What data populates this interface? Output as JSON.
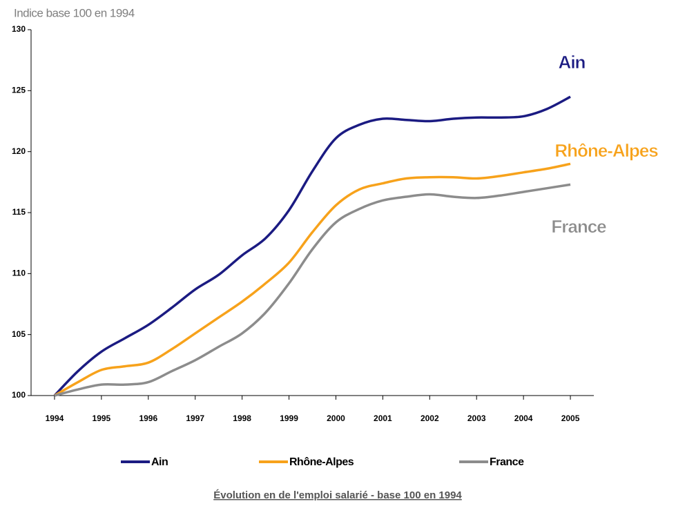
{
  "chart_data": {
    "type": "line",
    "ylabel": "Indice base 100 en 1994",
    "title": "Évolution en de l'emploi salarié - base 100 en 1994",
    "x": [
      1994,
      1994.5,
      1995,
      1995.5,
      1996,
      1996.5,
      1997,
      1997.5,
      1998,
      1998.5,
      1999,
      1999.5,
      2000,
      2000.5,
      2001,
      2001.5,
      2002,
      2002.5,
      2003,
      2003.5,
      2004,
      2004.5,
      2005
    ],
    "series": [
      {
        "name": "Ain",
        "color": "#1b1b82",
        "values": [
          100,
          102,
          103.6,
          104.7,
          105.8,
          107.2,
          108.7,
          109.9,
          111.5,
          112.9,
          115.2,
          118.4,
          121.1,
          122.2,
          122.7,
          122.6,
          122.5,
          122.7,
          122.8,
          122.8,
          122.9,
          123.5,
          124.5
        ]
      },
      {
        "name": "Rhône-Alpes",
        "color": "#f7a21b",
        "values": [
          100,
          101.1,
          102.1,
          102.4,
          102.7,
          103.8,
          105.1,
          106.4,
          107.7,
          109.2,
          110.9,
          113.4,
          115.6,
          116.9,
          117.4,
          117.8,
          117.9,
          117.9,
          117.8,
          118,
          118.3,
          118.6,
          119
        ]
      },
      {
        "name": "France",
        "color": "#8c8c8c",
        "values": [
          100,
          100.5,
          100.9,
          100.9,
          101.1,
          102,
          102.9,
          104,
          105.1,
          106.8,
          109.2,
          112,
          114.2,
          115.3,
          116,
          116.3,
          116.5,
          116.3,
          116.2,
          116.4,
          116.7,
          117,
          117.3
        ]
      }
    ],
    "xlim": [
      1993.5,
      2005.5
    ],
    "xticks": [
      1994,
      1995,
      1996,
      1997,
      1998,
      1999,
      2000,
      2001,
      2002,
      2003,
      2004,
      2005
    ],
    "ylim": [
      100,
      130
    ],
    "yticks": [
      100,
      105,
      110,
      115,
      120,
      125,
      130
    ],
    "legend": "bottom"
  }
}
